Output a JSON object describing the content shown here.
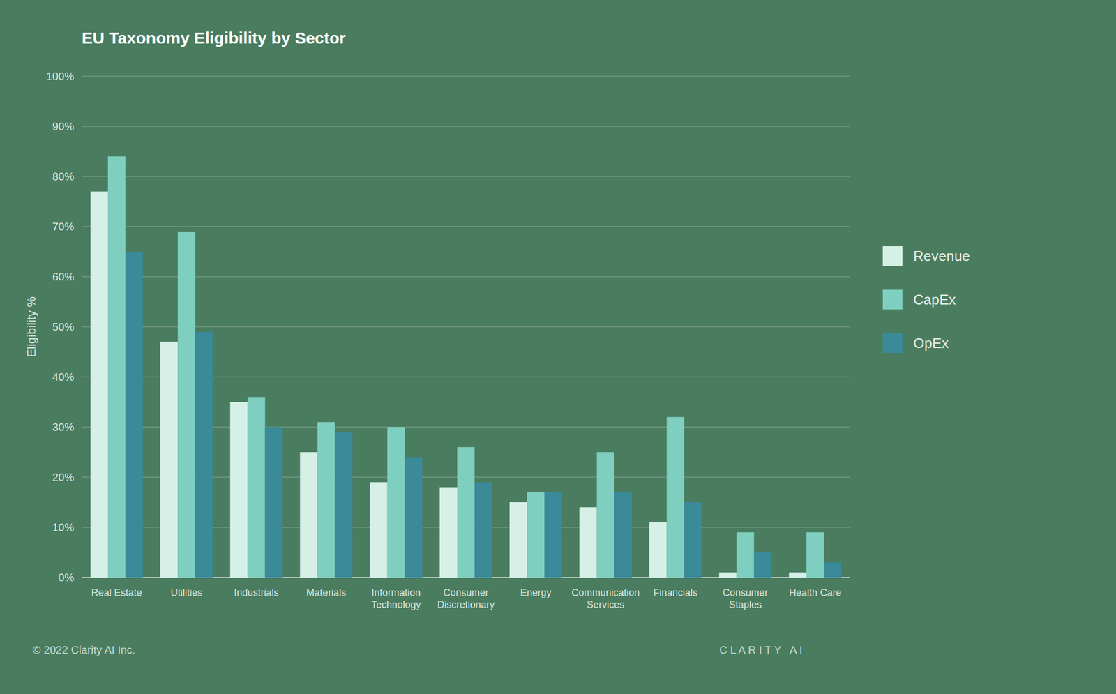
{
  "chart_data": {
    "type": "bar",
    "title": "EU Taxonomy Eligibility by Sector",
    "ylabel": "Eligibility %",
    "categories": [
      "Real Estate",
      "Utilities",
      "Industrials",
      "Materials",
      "Information\nTechnology",
      "Consumer\nDiscretionary",
      "Energy",
      "Communication\nServices",
      "Financials",
      "Consumer\nStaples",
      "Health Care"
    ],
    "series": [
      {
        "name": "Revenue",
        "color": "#d6f0e8",
        "values": [
          77,
          47,
          35,
          25,
          19,
          18,
          15,
          14,
          11,
          1,
          1
        ]
      },
      {
        "name": "CapEx",
        "color": "#7ecfbf",
        "values": [
          84,
          69,
          36,
          31,
          30,
          26,
          17,
          25,
          32,
          9,
          9
        ]
      },
      {
        "name": "OpEx",
        "color": "#3a8a9a",
        "values": [
          65,
          49,
          30,
          29,
          24,
          19,
          17,
          17,
          15,
          5,
          3
        ]
      }
    ],
    "ylim": [
      0,
      100
    ],
    "yticks": [
      {
        "value": 0,
        "label": "0%"
      },
      {
        "value": 10,
        "label": "10%"
      },
      {
        "value": 20,
        "label": "20%"
      },
      {
        "value": 30,
        "label": "30%"
      },
      {
        "value": 40,
        "label": "40%"
      },
      {
        "value": 50,
        "label": "50%"
      },
      {
        "value": 60,
        "label": "60%"
      },
      {
        "value": 70,
        "label": "70%"
      },
      {
        "value": 80,
        "label": "80%"
      },
      {
        "value": 90,
        "label": "90%"
      },
      {
        "value": 100,
        "label": "100%"
      }
    ],
    "grid": true,
    "legend": "right",
    "annotations": [
      "© 2022 Clarity AI Inc.",
      "C L A R I T Y   A I"
    ]
  }
}
